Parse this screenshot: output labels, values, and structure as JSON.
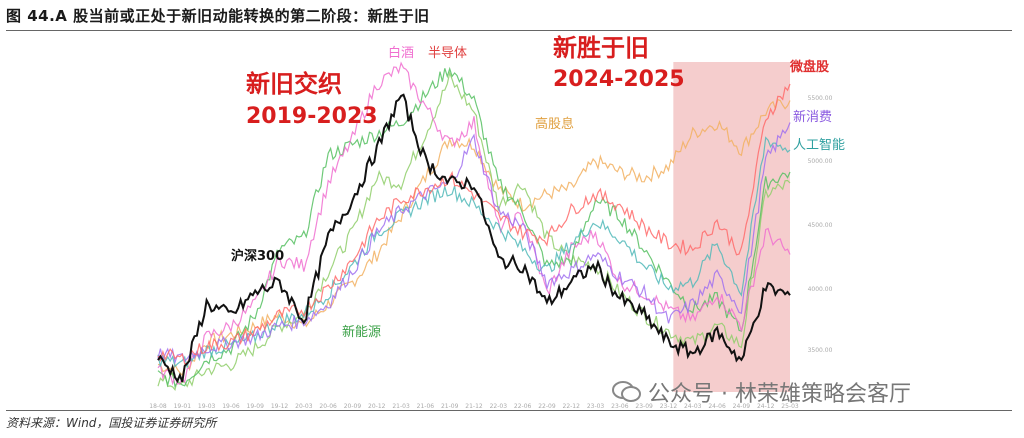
{
  "figure": {
    "title": "图 44.A 股当前或正处于新旧动能转换的第二阶段：新胜于旧",
    "source": "资料来源：Wind，国投证券证券研究所",
    "watermark": "公众号 · 林荣雄策略会客厅"
  },
  "colors": {
    "hs300": "#111111",
    "baijiu": "#f06fd0",
    "semis": "#55c060",
    "newenergy": "#8fce6a",
    "highdiv": "#f2b060",
    "newconsumer": "#a070f0",
    "ai": "#50b8b8",
    "microcap": "#ff6a6a",
    "highlight": "#f3c4c4",
    "label_red": "#d81e1e"
  },
  "annotations": {
    "period1_name": "新旧交织",
    "period1_years": "2019-2023",
    "period2_name": "新胜于旧",
    "period2_years": "2024-2025"
  },
  "chart_data": {
    "type": "line",
    "title": "",
    "x_axis": [
      "18-08",
      "19-01",
      "19-03",
      "19-06",
      "19-09",
      "19-12",
      "20-03",
      "20-06",
      "20-09",
      "20-12",
      "21-03",
      "21-06",
      "21-09",
      "21-12",
      "22-03",
      "22-06",
      "22-09",
      "22-12",
      "23-03",
      "23-06",
      "23-09",
      "23-12",
      "24-03",
      "24-06",
      "24-09",
      "24-12",
      "25-03"
    ],
    "y_ticks_right": [
      "5500.00",
      "5000.00",
      "4500.00",
      "4000.00",
      "3500.00"
    ],
    "series": [
      {
        "name": "沪深300",
        "key": "hs300",
        "values": [
          3300,
          3120,
          3800,
          3700,
          3900,
          4000,
          3650,
          4400,
          4750,
          5200,
          5700,
          5100,
          4900,
          4900,
          4200,
          4150,
          3800,
          4000,
          4150,
          3850,
          3700,
          3450,
          3350,
          3550,
          3280,
          3950,
          3880
        ]
      },
      {
        "name": "白酒",
        "key": "baijiu",
        "values": [
          3200,
          3100,
          3500,
          3600,
          3800,
          4200,
          4150,
          4900,
          5300,
          5800,
          5950,
          5600,
          5250,
          5450,
          4500,
          4600,
          3900,
          4300,
          4450,
          4000,
          3900,
          3750,
          3650,
          3900,
          3600,
          4450,
          4250
        ]
      },
      {
        "name": "半导体",
        "key": "semis",
        "values": [
          3150,
          3080,
          3300,
          3400,
          3700,
          4300,
          4400,
          5150,
          5250,
          5350,
          5450,
          5700,
          5950,
          5650,
          4900,
          4650,
          4150,
          4200,
          4750,
          4600,
          4300,
          4000,
          3750,
          3850,
          3550,
          4900,
          5000
        ]
      },
      {
        "name": "新能源",
        "key": "newenergy",
        "values": [
          3100,
          3050,
          3200,
          3250,
          3400,
          3600,
          3700,
          4100,
          4450,
          4950,
          4900,
          5350,
          5850,
          5550,
          4700,
          4900,
          4400,
          4200,
          4150,
          3900,
          3700,
          3550,
          3450,
          3600,
          3420,
          4800,
          4900
        ]
      },
      {
        "name": "高股息",
        "key": "highdiv",
        "values": [
          3250,
          3180,
          3450,
          3520,
          3600,
          3700,
          3600,
          3800,
          4000,
          4250,
          4600,
          4950,
          5300,
          5250,
          4850,
          4700,
          4800,
          4850,
          5100,
          5000,
          4950,
          5050,
          5350,
          5450,
          5200,
          5550,
          5650
        ]
      },
      {
        "name": "新消费",
        "key": "newconsumer",
        "values": [
          3350,
          3300,
          3400,
          3450,
          3500,
          3600,
          3650,
          3800,
          4100,
          4450,
          4650,
          4800,
          4900,
          5300,
          4650,
          4500,
          4000,
          4100,
          4250,
          4050,
          3900,
          3650,
          3800,
          4050,
          3750,
          5100,
          5450
        ]
      },
      {
        "name": "人工智能",
        "key": "ai",
        "values": [
          3300,
          3250,
          3380,
          3420,
          3500,
          3650,
          3700,
          3900,
          4150,
          4450,
          4600,
          4750,
          4850,
          4700,
          4500,
          4300,
          4100,
          4350,
          4550,
          4400,
          4150,
          3950,
          4000,
          4350,
          3900,
          5300,
          5200
        ]
      },
      {
        "name": "微盘股",
        "key": "microcap",
        "values": [
          3350,
          3300,
          3420,
          3450,
          3550,
          3700,
          3750,
          3950,
          4200,
          4550,
          4750,
          4850,
          4950,
          4800,
          4600,
          4450,
          4400,
          4650,
          4800,
          4700,
          4500,
          4350,
          4300,
          4550,
          4250,
          5500,
          5800
        ]
      }
    ],
    "highlight_range": {
      "from": "24-01",
      "to": "25-03"
    },
    "grid": false,
    "legend": "inline labels"
  }
}
